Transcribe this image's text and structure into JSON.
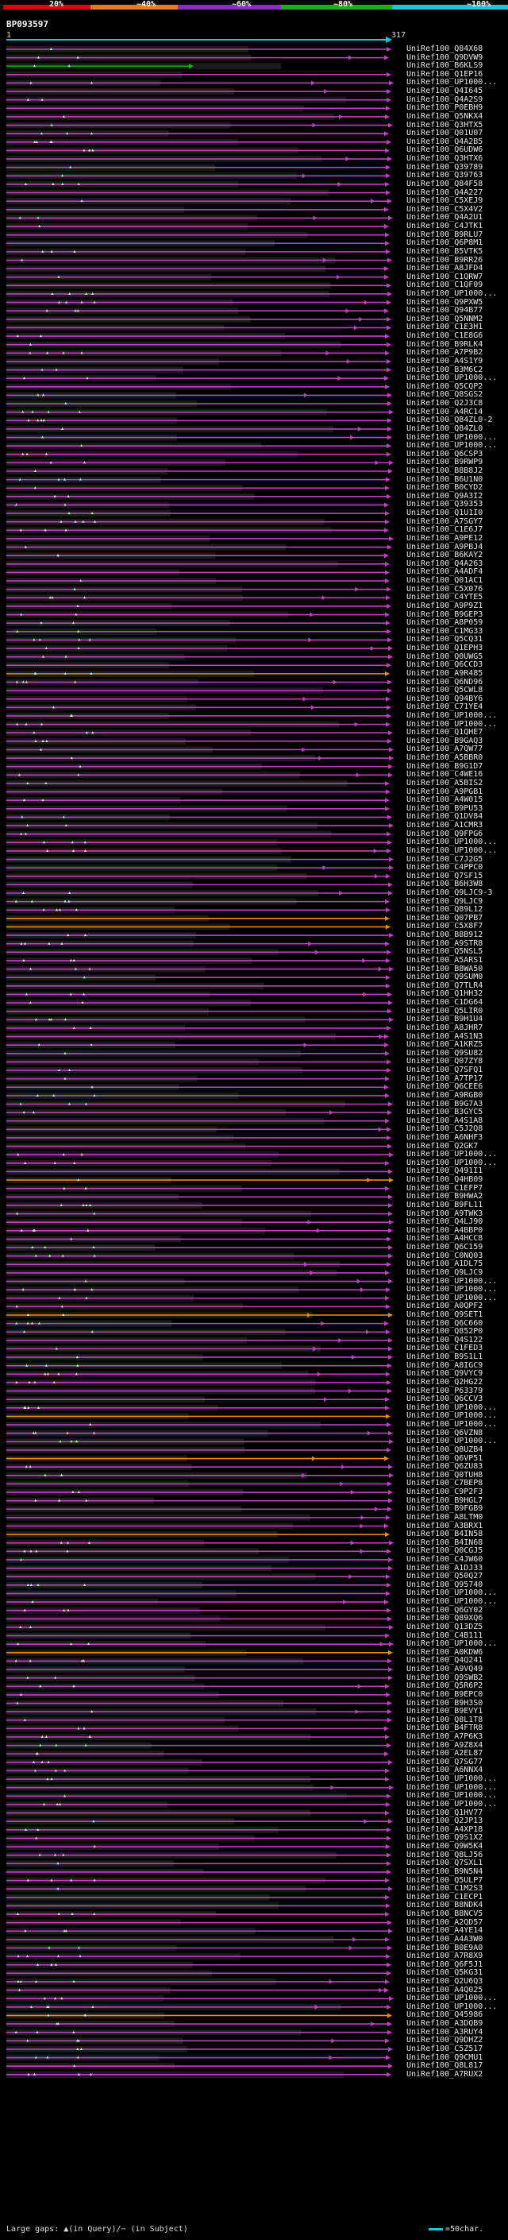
{
  "header": {
    "query_id": "BP093597",
    "axis_start": "1",
    "axis_end": "317",
    "scale_labels": [
      "20%",
      "~40%",
      "~60%",
      "~80%",
      "~100%"
    ],
    "scale_colors": [
      "#e00010",
      "#f07818",
      "#8830c8",
      "#18b018",
      "#18c8d8"
    ]
  },
  "legend": {
    "left_text": "Large gaps: ▲(in Query)/− (in Subject)",
    "right_text": "=50char."
  },
  "chart_data": {
    "type": "alignment",
    "query_length": 317,
    "hits": [
      "UniRef100_Q84X68",
      "UniRef100_Q9DVW9",
      "UniRef100_B6KLS9",
      "UniRef100_Q1EP16",
      "UniRef100_UP1000...",
      "UniRef100_Q4I645",
      "UniRef100_Q4A2S9",
      "UniRef100_P0EBH9",
      "UniRef100_Q5NKX4",
      "UniRef100_Q3HTX5",
      "UniRef100_Q01U07",
      "UniRef100_Q4A2B5",
      "UniRef100_Q6UDW6",
      "UniRef100_Q3HTX6",
      "UniRef100_Q39789",
      "UniRef100_Q39763",
      "UniRef100_Q84F58",
      "UniRef100_Q4A227",
      "UniRef100_C5XEJ9",
      "UniRef100_C5X4V2",
      "UniRef100_Q4A2U1",
      "UniRef100_C4JTK1",
      "UniRef100_B9RLU7",
      "UniRef100_Q6P8M1",
      "UniRef100_B5VTK5",
      "UniRef100_B9RR26",
      "UniRef100_A8JFD4",
      "UniRef100_C1QRW7",
      "UniRef100_C1QF09",
      "UniRef100_UP1000...",
      "UniRef100_Q9PXW5",
      "UniRef100_Q94B77",
      "UniRef100_Q5NNM2",
      "UniRef100_C1E3H1",
      "UniRef100_C1E8G6",
      "UniRef100_B9RLK4",
      "UniRef100_A7P9B2",
      "UniRef100_A4S1Y9",
      "UniRef100_B3M6C2",
      "UniRef100_UP1000...",
      "UniRef100_Q5CQP2",
      "UniRef100_Q8SGS2",
      "UniRef100_Q2J3C8",
      "UniRef100_A4RC14",
      "UniRef100_Q84ZL0-2",
      "UniRef100_Q84ZL0",
      "UniRef100_UP1000...",
      "UniRef100_UP1000...",
      "UniRef100_Q6CSP3",
      "UniRef100_B9RWP9",
      "UniRef100_B8B8J2",
      "UniRef100_B6U1N0",
      "UniRef100_B0CYD2",
      "UniRef100_Q9A3I2",
      "UniRef100_Q39353",
      "UniRef100_Q1U1I0",
      "UniRef100_A7SGY7",
      "UniRef100_C1E6J7",
      "UniRef100_A9PE12",
      "UniRef100_A9PBJ4",
      "UniRef100_B6KAY2",
      "UniRef100_Q4A263",
      "UniRef100_A4ADF4",
      "UniRef100_Q01AC1",
      "UniRef100_C5X076",
      "UniRef100_C4YTE5",
      "UniRef100_A9P9Z1",
      "UniRef100_B9GEP3",
      "UniRef100_A8P059",
      "UniRef100_C1MG33",
      "UniRef100_Q5CQ31",
      "UniRef100_Q1EPH3",
      "UniRef100_Q0UWG5",
      "UniRef100_Q6CCD3",
      "UniRef100_A9R485",
      "UniRef100_Q6ND96",
      "UniRef100_Q5CWL8",
      "UniRef100_Q94BY6",
      "UniRef100_C71YE4",
      "UniRef100_UP1000...",
      "UniRef100_UP1000...",
      "UniRef100_Q1QHE7",
      "UniRef100_B9GAQ3",
      "UniRef100_A7QW77",
      "UniRef100_A5BBR0",
      "UniRef100_B9G1D7",
      "UniRef100_C4WE16",
      "UniRef100_A5BIS2",
      "UniRef100_A9PGB1",
      "UniRef100_A4W015",
      "UniRef100_B9PU53",
      "UniRef100_Q1DV84",
      "UniRef100_A1CMR3",
      "UniRef100_Q9FPG6",
      "UniRef100_UP1000...",
      "UniRef100_UP1000...",
      "UniRef100_C7J2G5",
      "UniRef100_C4PPC0",
      "UniRef100_Q7SF15",
      "UniRef100_B6H3W8",
      "UniRef100_Q9LJC9-3",
      "UniRef100_Q9LJC9",
      "UniRef100_Q89L12",
      "UniRef100_Q07PB7",
      "UniRef100_C5X8F7",
      "UniRef100_B8B912",
      "UniRef100_A9STR8",
      "UniRef100_Q5NSL5",
      "UniRef100_A5ARS1",
      "UniRef100_B8WA50",
      "UniRef100_Q9SUM0",
      "UniRef100_Q7TLR4",
      "UniRef100_Q1HH32",
      "UniRef100_C1DG64",
      "UniRef100_Q5LIR0",
      "UniRef100_B9H1U4",
      "UniRef100_A8JHR7",
      "UniRef100_A4S1N3",
      "UniRef100_A1KRZ5",
      "UniRef100_Q9SU82",
      "UniRef100_Q07ZY8",
      "UniRef100_Q7SFQ1",
      "UniRef100_A7TP17",
      "UniRef100_Q6CEE6",
      "UniRef100_A9RGB0",
      "UniRef100_B9G7A3",
      "UniRef100_B3GYC5",
      "UniRef100_A4S1A8",
      "UniRef100_C5J2Q8",
      "UniRef100_A6NHF3",
      "UniRef100_Q2GK7",
      "UniRef100_UP1000...",
      "UniRef100_UP1000...",
      "UniRef100_Q491I1",
      "UniRef100_Q4HB09",
      "UniRef100_C1EFP7",
      "UniRef100_B9HWA2",
      "UniRef100_B9FL11",
      "UniRef100_A9TWK3",
      "UniRef100_Q4LJ90",
      "UniRef100_A4BBP0",
      "UniRef100_A4HCC8",
      "UniRef100_Q6C159",
      "UniRef100_C0NQ03",
      "UniRef100_A1DL75",
      "UniRef100_Q9LJC9",
      "UniRef100_UP1000...",
      "UniRef100_UP1000...",
      "UniRef100_UP1000...",
      "UniRef100_A0QPF2",
      "UniRef100_Q9SET1",
      "UniRef100_Q6C660",
      "UniRef100_Q852P0",
      "UniRef100_Q4S122",
      "UniRef100_C1FED3",
      "UniRef100_B9S1L1",
      "UniRef100_A8IGC9",
      "UniRef100_Q9VYC9",
      "UniRef100_Q2HG22",
      "UniRef100_P63379",
      "UniRef100_Q6CCV3",
      "UniRef100_UP1000...",
      "UniRef100_UP1000...",
      "UniRef100_UP1000...",
      "UniRef100_Q6VZN8",
      "UniRef100_UP1000...",
      "UniRef100_Q8UZB4",
      "UniRef100_Q6VP51",
      "UniRef100_Q6ZU83",
      "UniRef100_Q0TUH8",
      "UniRef100_C7BEP8",
      "UniRef100_C9P2F3",
      "UniRef100_B9HGL7",
      "UniRef100_B9FGB9",
      "UniRef100_A8LTM0",
      "UniRef100_A3BRX1",
      "UniRef100_B4IN58",
      "UniRef100_B4IN68",
      "UniRef100_Q0CGJ5",
      "UniRef100_C4JW60",
      "UniRef100_A1DJ33",
      "UniRef100_Q50Q27",
      "UniRef100_Q95740",
      "UniRef100_UP1000...",
      "UniRef100_UP1000...",
      "UniRef100_Q6GY02",
      "UniRef100_Q89XQ6",
      "UniRef100_Q13DZ5",
      "UniRef100_C4B111",
      "UniRef100_UP1000...",
      "UniRef100_A0KDW6",
      "UniRef100_Q4Q241",
      "UniRef100_A9VQ49",
      "UniRef100_Q9SWB2",
      "UniRef100_Q5R6P2",
      "UniRef100_B9EPC0",
      "UniRef100_B9H3S0",
      "UniRef100_B9EVY1",
      "UniRef100_Q8L1T8",
      "UniRef100_B4FTR8",
      "UniRef100_A7P6K3",
      "UniRef100_A9Z8X4",
      "UniRef100_A2EL87",
      "UniRef100_Q7SG77",
      "UniRef100_A6NNX4",
      "UniRef100_UP1000...",
      "UniRef100_UP1000...",
      "UniRef100_UP1000...",
      "UniRef100_UP1000...",
      "UniRef100_Q1HV77",
      "UniRef100_Q2JP13",
      "UniRef100_A4XP18",
      "UniRef100_Q9S1X2",
      "UniRef100_Q9W5K4",
      "UniRef100_Q8LJ56",
      "UniRef100_Q7SXL1",
      "UniRef100_B9N5N4",
      "UniRef100_Q5ULP7",
      "UniRef100_C1M2S3",
      "UniRef100_C1ECP1",
      "UniRef100_B8NDK4",
      "UniRef100_B8NCV5",
      "UniRef100_A2QD57",
      "UniRef100_A4YE14",
      "UniRef100_A4A3W0",
      "UniRef100_B0E9A0",
      "UniRef100_A7R8X9",
      "UniRef100_Q6F5J1",
      "UniRef100_Q5KG31",
      "UniRef100_Q2U6Q3",
      "UniRef100_A4Q025",
      "UniRef100_UP1000...",
      "UniRef100_UP1000...",
      "UniRef100_Q45986",
      "UniRef100_A3DQB9",
      "UniRef100_A3RUY4",
      "UniRef100_Q9DHZ2",
      "UniRef100_C5Z517",
      "UniRef100_Q9CMU1",
      "UniRef100_Q8L817",
      "UniRef100_A7RUX2"
    ]
  }
}
